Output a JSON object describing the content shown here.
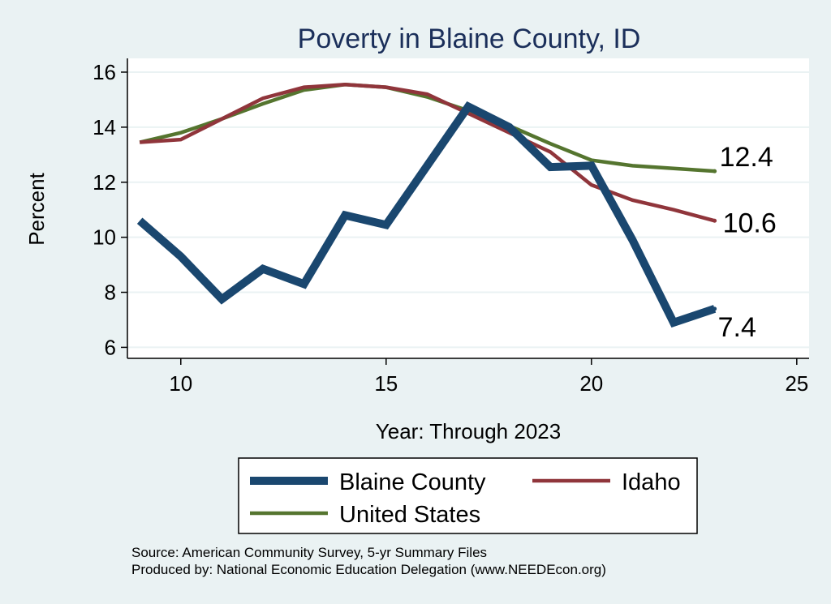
{
  "chart_data": {
    "type": "line",
    "title": "Poverty in Blaine County, ID",
    "xlabel": "Year: Through 2023",
    "ylabel": "Percent",
    "xlim": [
      8.7,
      25.3
    ],
    "ylim": [
      5.6,
      16.5
    ],
    "xticks": [
      10,
      15,
      20,
      25
    ],
    "yticks": [
      6,
      8,
      10,
      12,
      14,
      16
    ],
    "grid": true,
    "legend_position": "bottom",
    "series": [
      {
        "name": "Blaine County",
        "color": "#1a476f",
        "x": [
          9,
          10,
          11,
          12,
          13,
          14,
          15,
          16,
          17,
          18,
          19,
          20,
          21,
          22,
          23
        ],
        "values": [
          10.6,
          9.3,
          7.75,
          8.85,
          8.3,
          10.8,
          10.45,
          12.6,
          14.75,
          14.0,
          12.55,
          12.6,
          9.9,
          6.9,
          7.4
        ],
        "end_label": "7.4"
      },
      {
        "name": "Idaho",
        "color": "#90353b",
        "x": [
          9,
          10,
          11,
          12,
          13,
          14,
          15,
          16,
          17,
          18,
          19,
          20,
          21,
          22,
          23
        ],
        "values": [
          13.45,
          13.55,
          14.3,
          15.05,
          15.45,
          15.55,
          15.45,
          15.2,
          14.5,
          13.8,
          13.1,
          11.9,
          11.35,
          11.0,
          10.6
        ],
        "end_label": "10.6"
      },
      {
        "name": "United States",
        "color": "#55752f",
        "x": [
          9,
          10,
          11,
          12,
          13,
          14,
          15,
          16,
          17,
          18,
          19,
          20,
          21,
          22,
          23
        ],
        "values": [
          13.45,
          13.8,
          14.3,
          14.85,
          15.35,
          15.55,
          15.45,
          15.1,
          14.6,
          14.05,
          13.4,
          12.8,
          12.6,
          12.5,
          12.4
        ],
        "end_label": "12.4"
      }
    ]
  },
  "notes": {
    "source": "Source: American Community Survey, 5-yr Summary Files",
    "produced": "Produced by: National Economic Education Delegation (www.NEEDEcon.org)"
  }
}
